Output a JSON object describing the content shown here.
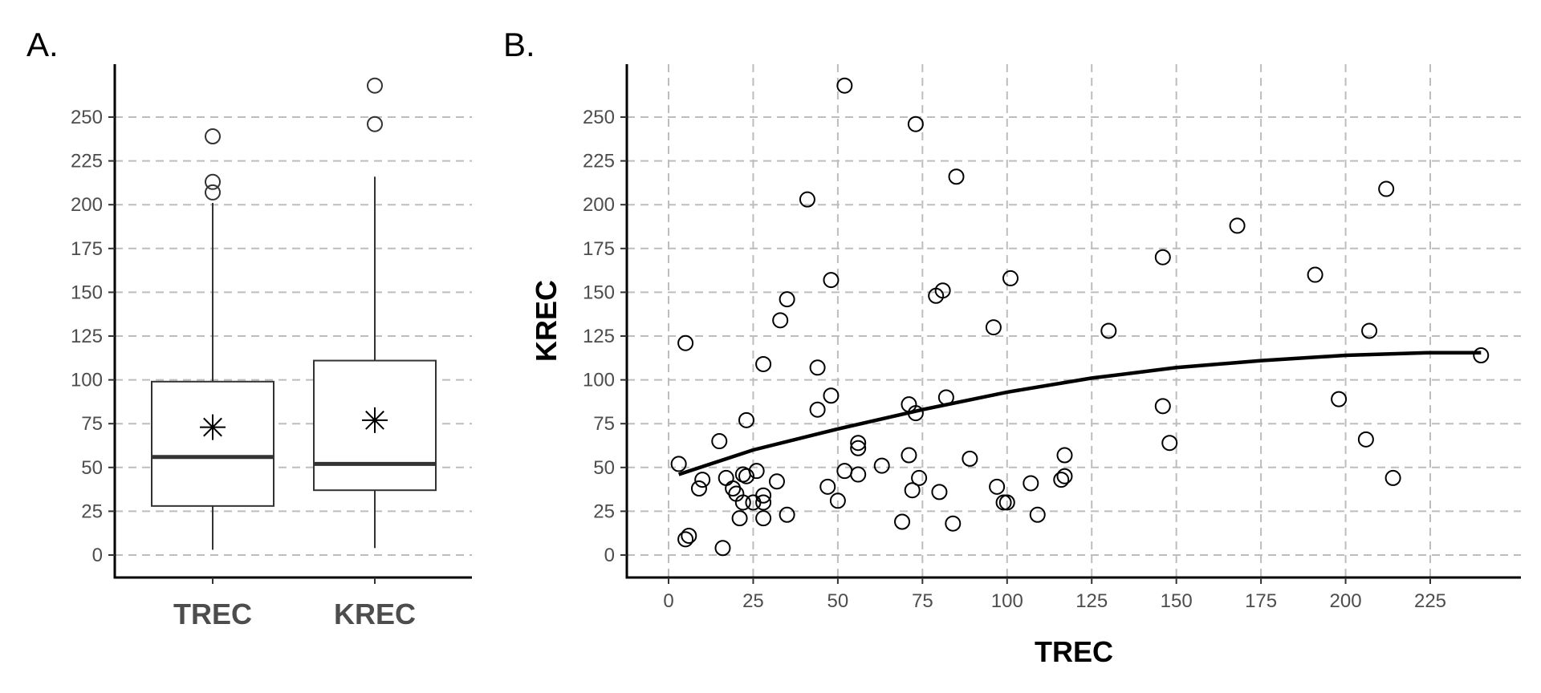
{
  "chart_data": [
    {
      "panel_label": "A.",
      "type": "box",
      "categories": [
        "TREC",
        "KREC"
      ],
      "xlabel": "",
      "ylabel": "",
      "ylim": [
        -14,
        277
      ],
      "yticks": [
        0,
        25,
        50,
        75,
        100,
        125,
        150,
        175,
        200,
        225,
        250
      ],
      "grid": "horizontal dashed",
      "boxes": [
        {
          "name": "TREC",
          "whisker_low": 3,
          "q1": 28,
          "median": 56,
          "q3": 99,
          "whisker_high": 201,
          "mean": 73,
          "outliers": [
            207,
            213,
            239
          ]
        },
        {
          "name": "KREC",
          "whisker_low": 4,
          "q1": 37,
          "median": 52,
          "q3": 111,
          "whisker_high": 216,
          "mean": 77,
          "outliers": [
            246,
            268
          ]
        }
      ]
    },
    {
      "panel_label": "B.",
      "type": "scatter",
      "xlabel": "TREC",
      "ylabel": "KREC",
      "xlim": [
        -12,
        251
      ],
      "ylim": [
        -14,
        277
      ],
      "xticks": [
        0,
        25,
        50,
        75,
        100,
        125,
        150,
        175,
        200,
        225
      ],
      "yticks": [
        0,
        25,
        50,
        75,
        100,
        125,
        150,
        175,
        200,
        225,
        250
      ],
      "grid": "both dashed",
      "points": [
        {
          "x": 3,
          "y": 52
        },
        {
          "x": 5,
          "y": 9
        },
        {
          "x": 6,
          "y": 11
        },
        {
          "x": 5,
          "y": 121
        },
        {
          "x": 9,
          "y": 38
        },
        {
          "x": 10,
          "y": 43
        },
        {
          "x": 15,
          "y": 65
        },
        {
          "x": 16,
          "y": 4
        },
        {
          "x": 17,
          "y": 44
        },
        {
          "x": 19,
          "y": 38
        },
        {
          "x": 20,
          "y": 35
        },
        {
          "x": 21,
          "y": 21
        },
        {
          "x": 22,
          "y": 30
        },
        {
          "x": 22,
          "y": 46
        },
        {
          "x": 23,
          "y": 77
        },
        {
          "x": 23,
          "y": 45
        },
        {
          "x": 25,
          "y": 30
        },
        {
          "x": 26,
          "y": 48
        },
        {
          "x": 28,
          "y": 34
        },
        {
          "x": 28,
          "y": 30
        },
        {
          "x": 28,
          "y": 21
        },
        {
          "x": 28,
          "y": 109
        },
        {
          "x": 32,
          "y": 42
        },
        {
          "x": 33,
          "y": 134
        },
        {
          "x": 35,
          "y": 146
        },
        {
          "x": 35,
          "y": 23
        },
        {
          "x": 41,
          "y": 203
        },
        {
          "x": 44,
          "y": 107
        },
        {
          "x": 44,
          "y": 83
        },
        {
          "x": 47,
          "y": 39
        },
        {
          "x": 48,
          "y": 157
        },
        {
          "x": 48,
          "y": 91
        },
        {
          "x": 50,
          "y": 31
        },
        {
          "x": 52,
          "y": 48
        },
        {
          "x": 52,
          "y": 268
        },
        {
          "x": 56,
          "y": 64
        },
        {
          "x": 56,
          "y": 61
        },
        {
          "x": 56,
          "y": 46
        },
        {
          "x": 63,
          "y": 51
        },
        {
          "x": 69,
          "y": 19
        },
        {
          "x": 71,
          "y": 86
        },
        {
          "x": 71,
          "y": 57
        },
        {
          "x": 72,
          "y": 37
        },
        {
          "x": 73,
          "y": 81
        },
        {
          "x": 73,
          "y": 246
        },
        {
          "x": 74,
          "y": 44
        },
        {
          "x": 79,
          "y": 148
        },
        {
          "x": 80,
          "y": 36
        },
        {
          "x": 81,
          "y": 151
        },
        {
          "x": 82,
          "y": 90
        },
        {
          "x": 84,
          "y": 18
        },
        {
          "x": 85,
          "y": 216
        },
        {
          "x": 89,
          "y": 55
        },
        {
          "x": 96,
          "y": 130
        },
        {
          "x": 97,
          "y": 39
        },
        {
          "x": 99,
          "y": 30
        },
        {
          "x": 100,
          "y": 30
        },
        {
          "x": 101,
          "y": 158
        },
        {
          "x": 107,
          "y": 41
        },
        {
          "x": 109,
          "y": 23
        },
        {
          "x": 116,
          "y": 43
        },
        {
          "x": 117,
          "y": 45
        },
        {
          "x": 117,
          "y": 57
        },
        {
          "x": 130,
          "y": 128
        },
        {
          "x": 146,
          "y": 170
        },
        {
          "x": 146,
          "y": 85
        },
        {
          "x": 148,
          "y": 64
        },
        {
          "x": 168,
          "y": 188
        },
        {
          "x": 191,
          "y": 160
        },
        {
          "x": 198,
          "y": 89
        },
        {
          "x": 206,
          "y": 66
        },
        {
          "x": 207,
          "y": 128
        },
        {
          "x": 212,
          "y": 209
        },
        {
          "x": 214,
          "y": 44
        },
        {
          "x": 240,
          "y": 114
        }
      ],
      "fit_curve": [
        {
          "x": 3,
          "y": 46
        },
        {
          "x": 25,
          "y": 60
        },
        {
          "x": 50,
          "y": 72
        },
        {
          "x": 75,
          "y": 83
        },
        {
          "x": 100,
          "y": 93
        },
        {
          "x": 125,
          "y": 101
        },
        {
          "x": 150,
          "y": 107
        },
        {
          "x": 175,
          "y": 111
        },
        {
          "x": 200,
          "y": 114
        },
        {
          "x": 225,
          "y": 115.5
        },
        {
          "x": 240,
          "y": 115.5
        }
      ]
    }
  ]
}
